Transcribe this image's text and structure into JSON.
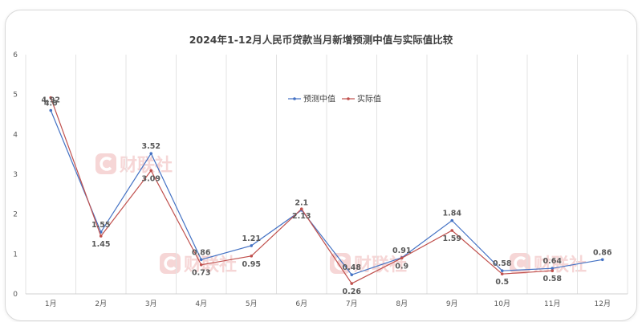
{
  "chart_data": {
    "type": "line",
    "title": "2024年1-12月人民币贷款当月新增预测中值与实际值比较",
    "categories": [
      "1月",
      "2月",
      "3月",
      "4月",
      "5月",
      "6月",
      "7月",
      "8月",
      "9月",
      "10月",
      "11月",
      "12月"
    ],
    "ylim": [
      0,
      6
    ],
    "yticks": [
      0,
      1,
      2,
      3,
      4,
      5,
      6
    ],
    "grid": "vertical",
    "legend_position": "center-top",
    "series": [
      {
        "name": "预测中值",
        "color": "#4472c4",
        "values": [
          4.6,
          1.55,
          3.52,
          0.86,
          1.21,
          2.1,
          0.48,
          0.91,
          1.84,
          0.58,
          0.64,
          0.86
        ],
        "labels": [
          "4.6",
          "1.55",
          "3.52",
          "0.86",
          "1.21",
          "2.1",
          "0.48",
          "0.91",
          "1.84",
          "0.58",
          "0.64",
          "0.86"
        ]
      },
      {
        "name": "实际值",
        "color": "#c0504d",
        "values": [
          4.92,
          1.45,
          3.09,
          0.73,
          0.95,
          2.13,
          0.26,
          0.9,
          1.59,
          0.5,
          0.58,
          null
        ],
        "labels": [
          "4.92",
          "1.45",
          "3.09",
          "0.73",
          "0.95",
          "2.13",
          "0.26",
          "0.9",
          "1.59",
          "0.5",
          "0.58",
          ""
        ]
      }
    ]
  },
  "watermark": {
    "text": "财联社",
    "icon": "c-logo-icon"
  }
}
